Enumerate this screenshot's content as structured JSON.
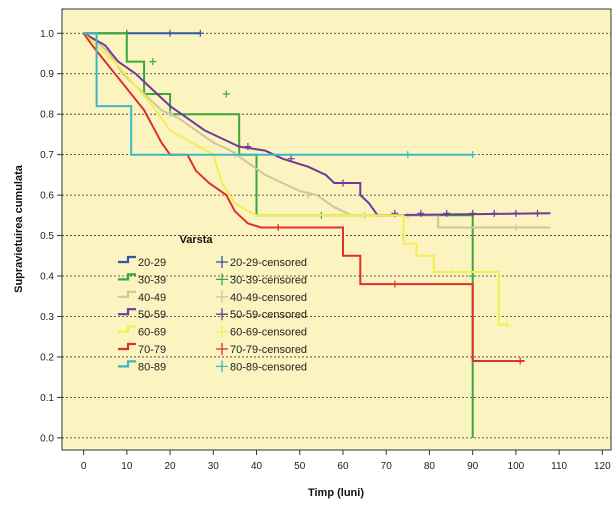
{
  "chart_data": {
    "type": "line",
    "subtype": "kaplan-meier-step",
    "title": "",
    "xlabel": "Timp (luni)",
    "ylabel": "Supravietuirea cumulata",
    "xlim": [
      -5,
      122
    ],
    "ylim": [
      -0.03,
      1.06
    ],
    "xticks": [
      0,
      10,
      20,
      30,
      40,
      50,
      60,
      70,
      80,
      90,
      100,
      110,
      120
    ],
    "yticks": [
      0.0,
      0.1,
      0.2,
      0.3,
      0.4,
      0.5,
      0.6,
      0.7,
      0.8,
      0.9,
      1.0
    ],
    "ytick_labels": [
      "0.0",
      "0.1",
      "0.2",
      "0.3",
      "0.4",
      "0.5",
      "0.6",
      "0.7",
      "0.8",
      "0.9",
      "1.0"
    ],
    "grid": "horizontal-dotted",
    "background_color": "#fbf4c0",
    "legend": {
      "title": "Varsta",
      "placement": "bottom-left"
    },
    "series": [
      {
        "name": "20-29",
        "censored_label": "20-29-censored",
        "color": "#2f56a8",
        "points": [
          [
            0,
            1.0
          ],
          [
            27,
            1.0
          ]
        ],
        "censored": [
          [
            10,
            1.0
          ],
          [
            20,
            1.0
          ],
          [
            27,
            1.0
          ]
        ]
      },
      {
        "name": "30-39",
        "censored_label": "30-39-censored",
        "color": "#3aa83a",
        "points": [
          [
            0,
            1.0
          ],
          [
            10,
            1.0
          ],
          [
            10,
            0.93
          ],
          [
            14,
            0.93
          ],
          [
            14,
            0.85
          ],
          [
            20,
            0.85
          ],
          [
            20,
            0.8
          ],
          [
            36,
            0.8
          ],
          [
            36,
            0.7
          ],
          [
            40,
            0.7
          ],
          [
            40,
            0.55
          ],
          [
            90,
            0.55
          ],
          [
            90,
            0.0
          ]
        ],
        "censored": [
          [
            16,
            0.93
          ],
          [
            33,
            0.85
          ],
          [
            55,
            0.55
          ],
          [
            90,
            0.4
          ]
        ]
      },
      {
        "name": "40-49",
        "censored_label": "40-49-censored",
        "color": "#d2c59c",
        "points": [
          [
            0,
            1.0
          ],
          [
            3,
            0.98
          ],
          [
            6,
            0.95
          ],
          [
            9,
            0.9
          ],
          [
            12,
            0.87
          ],
          [
            15,
            0.84
          ],
          [
            18,
            0.81
          ],
          [
            22,
            0.79
          ],
          [
            26,
            0.76
          ],
          [
            30,
            0.73
          ],
          [
            34,
            0.71
          ],
          [
            38,
            0.68
          ],
          [
            42,
            0.65
          ],
          [
            46,
            0.63
          ],
          [
            50,
            0.61
          ],
          [
            54,
            0.6
          ],
          [
            58,
            0.57
          ],
          [
            62,
            0.55
          ],
          [
            66,
            0.55
          ],
          [
            82,
            0.55
          ],
          [
            82,
            0.52
          ],
          [
            108,
            0.52
          ]
        ],
        "censored": [
          [
            20,
            0.8
          ],
          [
            35,
            0.7
          ],
          [
            52,
            0.6
          ],
          [
            65,
            0.55
          ],
          [
            75,
            0.55
          ],
          [
            100,
            0.52
          ]
        ]
      },
      {
        "name": "50-59",
        "censored_label": "50-59-censored",
        "color": "#6f3a9a",
        "points": [
          [
            0,
            1.0
          ],
          [
            5,
            0.97
          ],
          [
            8,
            0.93
          ],
          [
            12,
            0.9
          ],
          [
            16,
            0.86
          ],
          [
            20,
            0.82
          ],
          [
            24,
            0.79
          ],
          [
            28,
            0.76
          ],
          [
            32,
            0.74
          ],
          [
            36,
            0.72
          ],
          [
            42,
            0.71
          ],
          [
            46,
            0.69
          ],
          [
            52,
            0.67
          ],
          [
            56,
            0.65
          ],
          [
            58,
            0.63
          ],
          [
            64,
            0.63
          ],
          [
            64,
            0.6
          ],
          [
            66,
            0.58
          ],
          [
            68,
            0.55
          ],
          [
            108,
            0.555
          ]
        ],
        "censored": [
          [
            38,
            0.72
          ],
          [
            48,
            0.69
          ],
          [
            60,
            0.63
          ],
          [
            72,
            0.555
          ],
          [
            78,
            0.555
          ],
          [
            84,
            0.555
          ],
          [
            90,
            0.555
          ],
          [
            95,
            0.555
          ],
          [
            100,
            0.555
          ],
          [
            105,
            0.555
          ]
        ]
      },
      {
        "name": "60-69",
        "censored_label": "60-69-censored",
        "color": "#f4ee4e",
        "points": [
          [
            0,
            1.0
          ],
          [
            4,
            0.96
          ],
          [
            8,
            0.92
          ],
          [
            12,
            0.87
          ],
          [
            16,
            0.82
          ],
          [
            20,
            0.76
          ],
          [
            25,
            0.73
          ],
          [
            30,
            0.7
          ],
          [
            32,
            0.63
          ],
          [
            35,
            0.58
          ],
          [
            38,
            0.56
          ],
          [
            40,
            0.55
          ],
          [
            74,
            0.55
          ],
          [
            74,
            0.48
          ],
          [
            77,
            0.48
          ],
          [
            77,
            0.45
          ],
          [
            81,
            0.45
          ],
          [
            81,
            0.41
          ],
          [
            96,
            0.41
          ],
          [
            96,
            0.28
          ],
          [
            98,
            0.28
          ]
        ],
        "censored": [
          [
            60,
            0.55
          ],
          [
            85,
            0.41
          ],
          [
            98,
            0.28
          ]
        ]
      },
      {
        "name": "70-79",
        "censored_label": "70-79-censored",
        "color": "#e0302a",
        "points": [
          [
            0,
            1.0
          ],
          [
            2,
            0.97
          ],
          [
            5,
            0.93
          ],
          [
            8,
            0.89
          ],
          [
            11,
            0.85
          ],
          [
            14,
            0.81
          ],
          [
            16,
            0.77
          ],
          [
            18,
            0.73
          ],
          [
            20,
            0.7
          ],
          [
            24,
            0.7
          ],
          [
            26,
            0.66
          ],
          [
            29,
            0.63
          ],
          [
            33,
            0.6
          ],
          [
            35,
            0.56
          ],
          [
            38,
            0.53
          ],
          [
            41,
            0.52
          ],
          [
            60,
            0.52
          ],
          [
            60,
            0.45
          ],
          [
            64,
            0.45
          ],
          [
            64,
            0.38
          ],
          [
            90,
            0.38
          ],
          [
            90,
            0.19
          ],
          [
            102,
            0.19
          ]
        ],
        "censored": [
          [
            45,
            0.52
          ],
          [
            72,
            0.38
          ],
          [
            101,
            0.19
          ]
        ]
      },
      {
        "name": "80-89",
        "censored_label": "80-89-censored",
        "color": "#3cb7c8",
        "points": [
          [
            0,
            1.0
          ],
          [
            3,
            1.0
          ],
          [
            3,
            0.82
          ],
          [
            11,
            0.82
          ],
          [
            11,
            0.7
          ],
          [
            90,
            0.7
          ]
        ],
        "censored": [
          [
            75,
            0.7
          ],
          [
            90,
            0.7
          ]
        ]
      }
    ]
  }
}
